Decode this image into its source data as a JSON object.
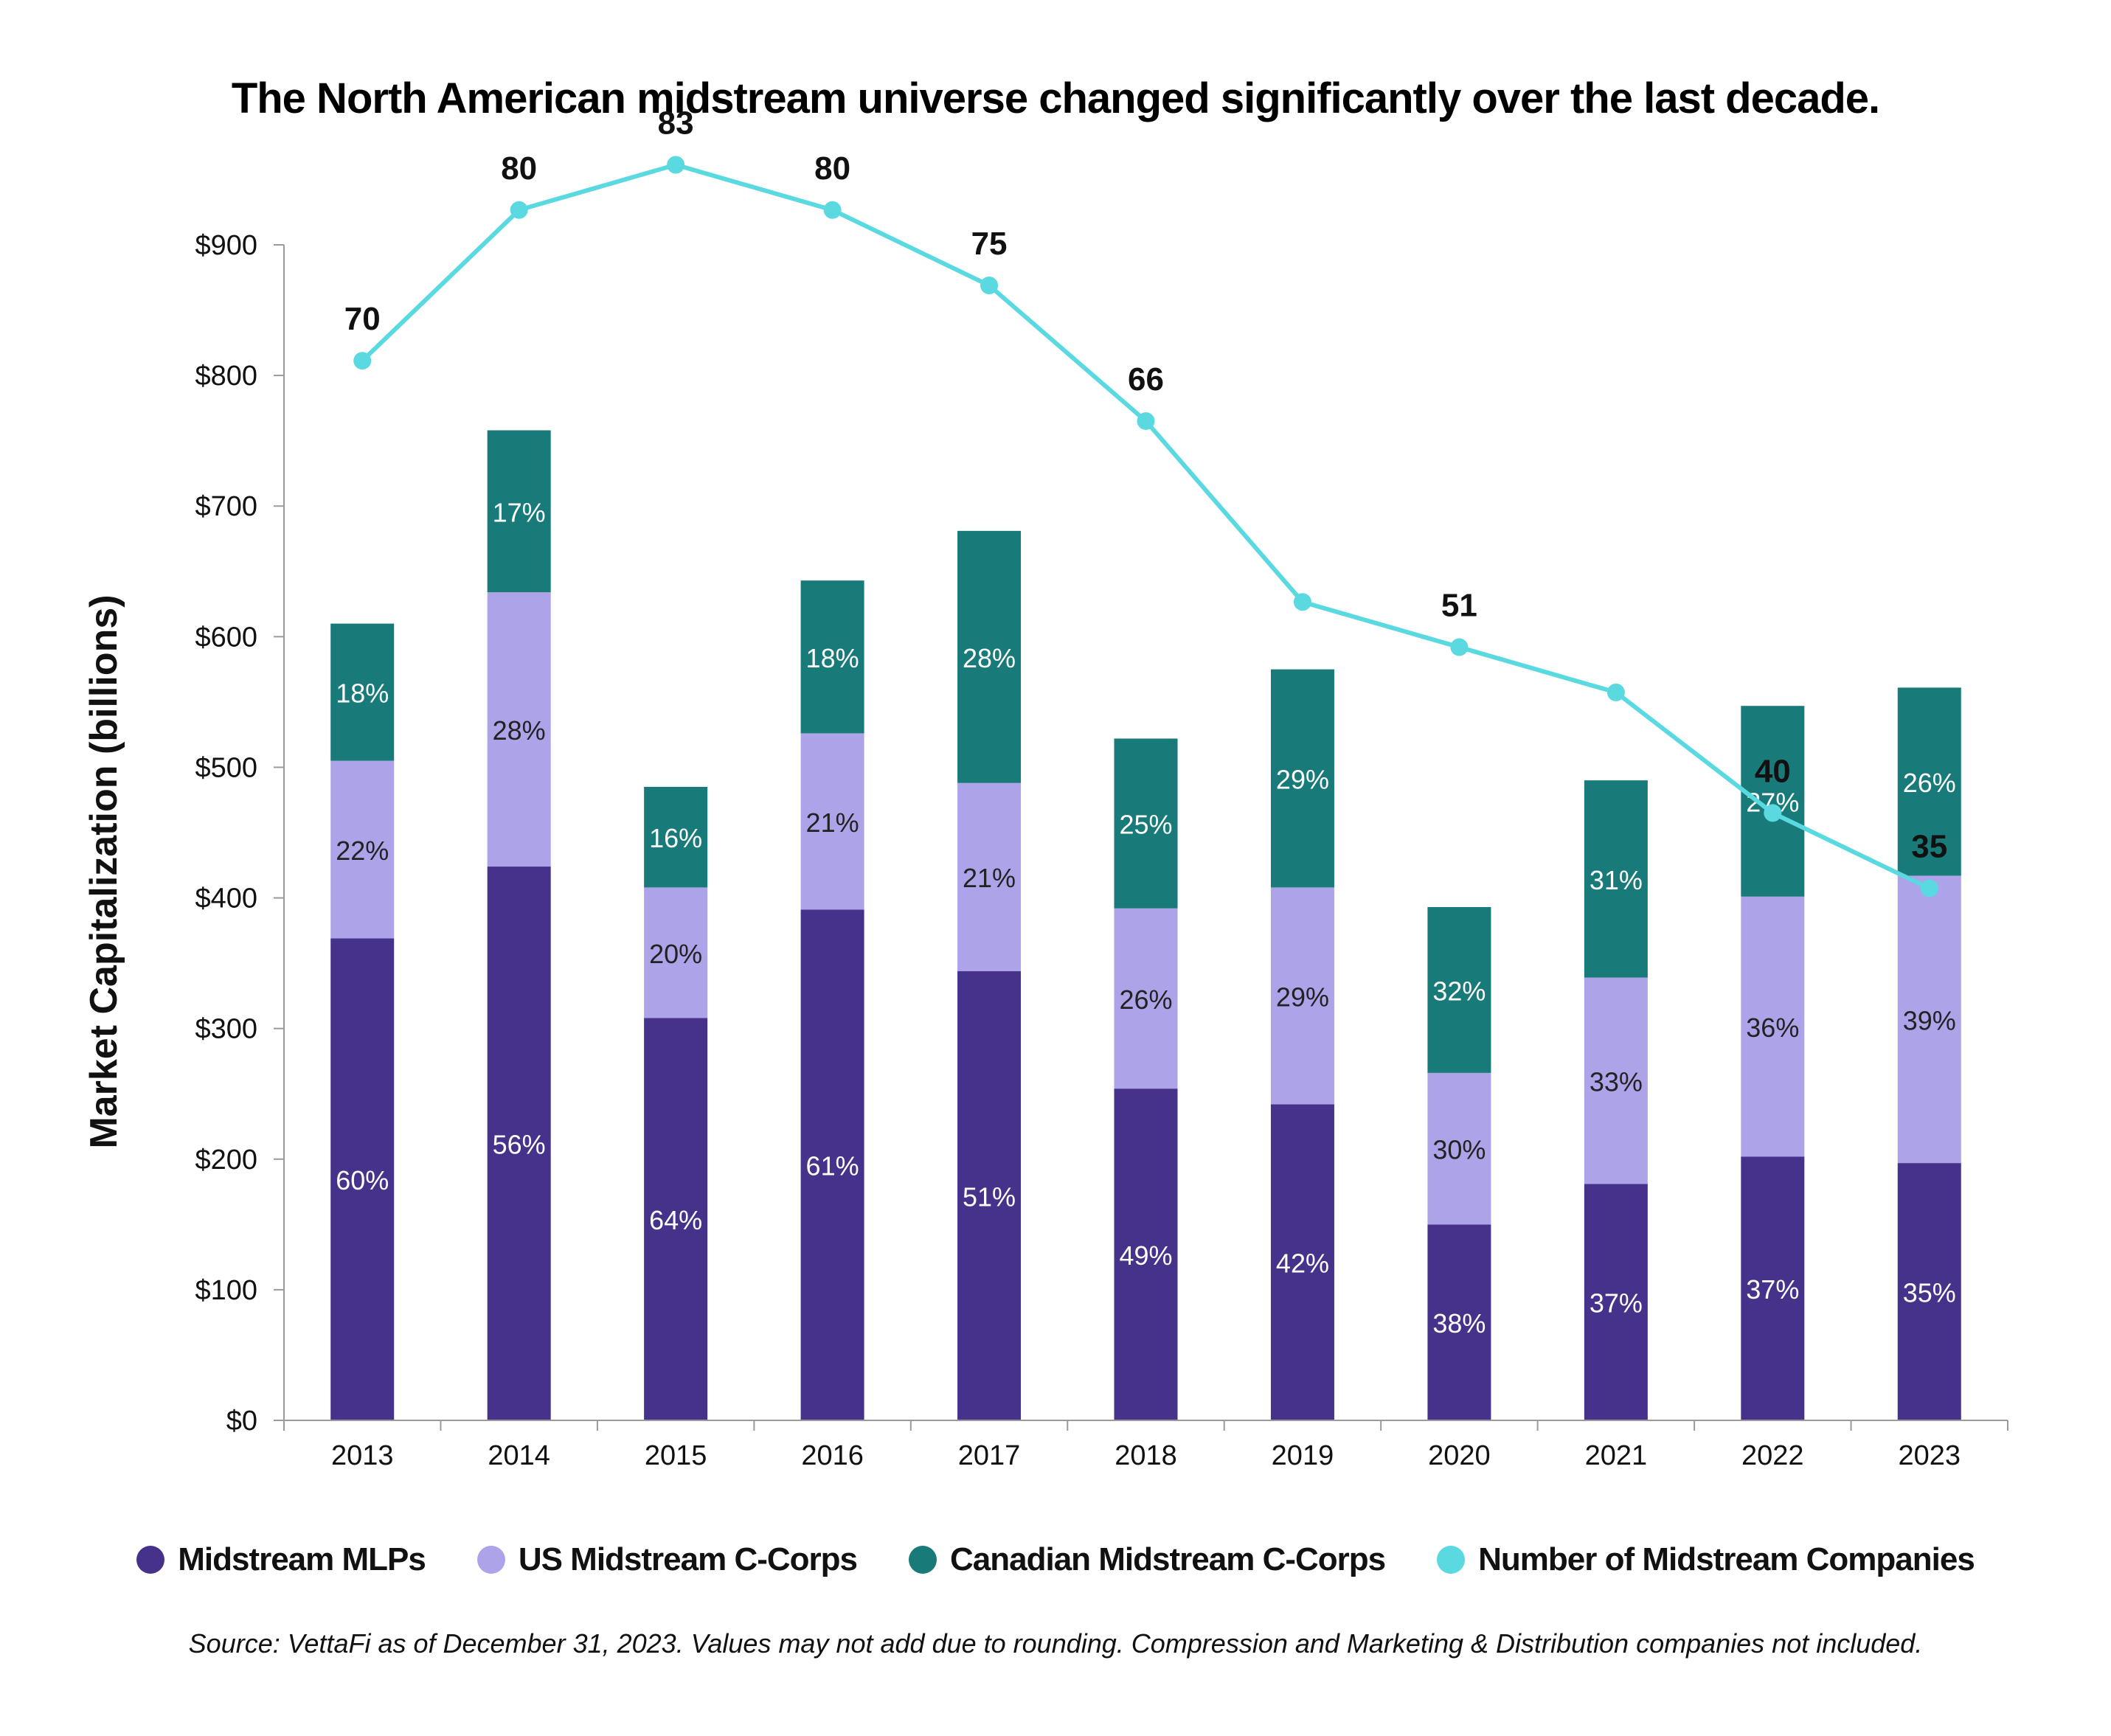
{
  "chart_data": {
    "type": "bar",
    "title": "The North American midstream universe changed significantly over the last decade.",
    "ylabel": "Market Capitalization (billions)",
    "xlabel": "",
    "ylim": [
      0,
      900
    ],
    "y_ticks": [
      "$0",
      "$100",
      "$200",
      "$300",
      "$400",
      "$500",
      "$600",
      "$700",
      "$800",
      "$900"
    ],
    "categories": [
      "2013",
      "2014",
      "2015",
      "2016",
      "2017",
      "2018",
      "2019",
      "2020",
      "2021",
      "2022",
      "2023"
    ],
    "stacked": true,
    "series": [
      {
        "name": "Midstream MLPs",
        "color": "#46328a",
        "values": [
          369,
          424,
          308,
          391,
          344,
          254,
          242,
          150,
          181,
          202,
          197
        ],
        "labels": [
          "60%",
          "56%",
          "64%",
          "61%",
          "51%",
          "49%",
          "42%",
          "38%",
          "37%",
          "37%",
          "35%"
        ]
      },
      {
        "name": "US Midstream C-Corps",
        "color": "#ada3e8",
        "values": [
          136,
          210,
          100,
          135,
          144,
          138,
          166,
          116,
          158,
          199,
          220
        ],
        "labels": [
          "22%",
          "28%",
          "20%",
          "21%",
          "21%",
          "26%",
          "29%",
          "30%",
          "33%",
          "36%",
          "39%"
        ]
      },
      {
        "name": "Canadian Midstream C-Corps",
        "color": "#197a7a",
        "values": [
          105,
          124,
          77,
          117,
          193,
          130,
          167,
          127,
          151,
          146,
          144
        ],
        "labels": [
          "18%",
          "17%",
          "16%",
          "18%",
          "28%",
          "25%",
          "29%",
          "32%",
          "31%",
          "27%",
          "26%"
        ]
      }
    ],
    "line_series": {
      "name": "Number of Midstream Companies",
      "color": "#5ad9e0",
      "values": [
        70,
        80,
        83,
        80,
        75,
        66,
        54,
        51,
        48,
        40,
        35
      ]
    },
    "grid": false,
    "legend_position": "bottom"
  },
  "legend": [
    {
      "label": "Midstream MLPs",
      "color": "#46328a"
    },
    {
      "label": "US Midstream C-Corps",
      "color": "#ada3e8"
    },
    {
      "label": "Canadian Midstream C-Corps",
      "color": "#197a7a"
    },
    {
      "label": "Number of Midstream Companies",
      "color": "#5ad9e0"
    }
  ],
  "source_note": "Source: VettaFi as of December 31, 2023. Values may not add due to rounding. Compression and Marketing & Distribution companies not included."
}
